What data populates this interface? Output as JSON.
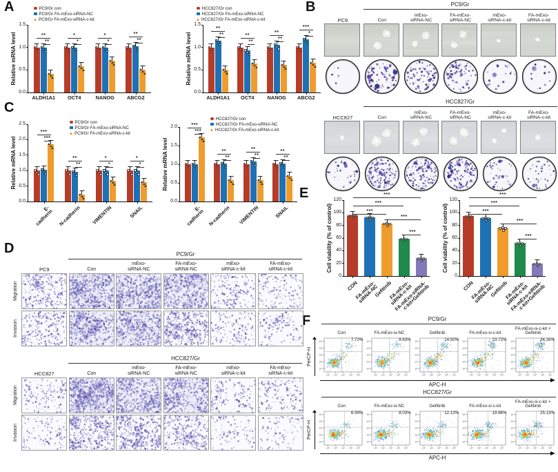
{
  "palette": {
    "con": "#b73c27",
    "nc": "#1e71b4",
    "ckit": "#ef9c2d",
    "green": "#208a4c",
    "purple": "#8279b9"
  },
  "panels": {
    "a": {
      "label": "A",
      "charts": [
        {
          "name": "pc9-stemness-mrna",
          "ylabel": "Relative mRNA level",
          "ymax": 1.5,
          "yticks": [
            "0.0",
            "0.5",
            "1.0",
            "1.5"
          ],
          "categories": [
            "ALDH1A1",
            "OCT4",
            "NANOG",
            "ABCG2"
          ],
          "legend": [
            "PC9/Gr con",
            "PC9/Gr FA-mExo-siRNA-NC",
            "PC9/Gr FA-mExo-siRNA-c-kit"
          ],
          "series": [
            {
              "name": "con",
              "color_key": "con",
              "values": [
                1.0,
                1.0,
                1.0,
                1.0
              ]
            },
            {
              "name": "siRNA-NC",
              "color_key": "nc",
              "values": [
                1.0,
                1.0,
                1.0,
                1.03
              ]
            },
            {
              "name": "siRNA-c-kit",
              "color_key": "ckit",
              "values": [
                0.42,
                0.58,
                0.7,
                0.5
              ]
            }
          ],
          "sig": [
            [
              "**",
              "**"
            ],
            [
              "*",
              "*"
            ],
            [
              "*",
              "*"
            ],
            [
              "**",
              "**"
            ]
          ]
        },
        {
          "name": "hcc827-stemness-mrna",
          "ylabel": "Relative mRNA level",
          "ymax": 1.5,
          "yticks": [
            "0.0",
            "0.5",
            "1.0",
            "1.5"
          ],
          "categories": [
            "ALDH1A1",
            "OCT4",
            "NANOG",
            "ABCG2"
          ],
          "legend": [
            "HCC827/Gr con",
            "HCC827/Gr FA-mExo-siRNA-NC",
            "HCC827/Gr FA-mExo-siRNA-c-kit"
          ],
          "series": [
            {
              "name": "con",
              "color_key": "con",
              "values": [
                1.0,
                1.0,
                1.0,
                1.0
              ]
            },
            {
              "name": "siRNA-NC",
              "color_key": "nc",
              "values": [
                1.15,
                0.93,
                1.05,
                1.18
              ]
            },
            {
              "name": "siRNA-c-kit",
              "color_key": "ckit",
              "values": [
                0.5,
                0.65,
                0.62,
                0.66
              ]
            }
          ],
          "sig": [
            [
              "**",
              "**"
            ],
            [
              "**",
              "**"
            ],
            [
              "**",
              "**"
            ],
            [
              "***",
              "*"
            ]
          ]
        }
      ]
    },
    "b": {
      "label": "B",
      "blocks": [
        {
          "parent": "PC9",
          "group": "PC9/Gr",
          "treatments": [
            "Con",
            "mExo-\nsiRNA-NC",
            "FA-mExo-\nsiRNA-NC",
            "mExo-\nsiRNA-c-kit",
            "FA-mExo-\nsiRNA-c-kit"
          ],
          "spheres": [
            {
              "n": 0,
              "r": 0
            },
            {
              "n": 2,
              "r": 8
            },
            {
              "n": 2,
              "r": 7
            },
            {
              "n": 2,
              "r": 7
            },
            {
              "n": 1,
              "r": 4
            },
            {
              "n": 1,
              "r": 4
            }
          ],
          "colony_dots": [
            4,
            80,
            70,
            62,
            18,
            12
          ],
          "tint": "green"
        },
        {
          "parent": "HCC827",
          "group": "HCC827/Gr",
          "treatments": [
            "Con",
            "mExo-\nsiRNA-NC",
            "FA-mExo-\nsiRNA-NC",
            "mExo-\nsiRNA-c-kit",
            "FA-mExo-\nsiRNA-c-kit"
          ],
          "spheres": [
            {
              "n": 1,
              "r": 4
            },
            {
              "n": 2,
              "r": 9
            },
            {
              "n": 2,
              "r": 8
            },
            {
              "n": 2,
              "r": 9
            },
            {
              "n": 2,
              "r": 5
            },
            {
              "n": 1,
              "r": 5
            }
          ],
          "colony_dots": [
            35,
            160,
            150,
            140,
            45,
            38
          ],
          "tint": "gray"
        }
      ]
    },
    "c": {
      "label": "C",
      "charts": [
        {
          "name": "pc9-emt-mrna",
          "ylabel": "Relative mRNA level",
          "ymax": 2.5,
          "xrot": true,
          "yticks": [
            "0.0",
            "0.5",
            "1.0",
            "1.5",
            "2.0",
            "2.5"
          ],
          "categories": [
            "E-cadherin",
            "N-cadherin",
            "VIMENTIN",
            "SNAIL"
          ],
          "legend": [
            "PC9/Gr con",
            "PC9/Gr FA-mExo-siRNA-NC",
            "PC9/Gr FA-mExo-siRNA-c-kit"
          ],
          "series": [
            {
              "name": "con",
              "color_key": "con",
              "values": [
                1.0,
                1.0,
                1.0,
                1.0
              ]
            },
            {
              "name": "siRNA-NC",
              "color_key": "nc",
              "values": [
                1.03,
                0.97,
                1.0,
                1.0
              ]
            },
            {
              "name": "siRNA-c-kit",
              "color_key": "ckit",
              "values": [
                1.85,
                0.22,
                0.68,
                0.63
              ]
            }
          ],
          "sig": [
            [
              "***",
              "***"
            ],
            [
              "**",
              "**"
            ],
            [
              "*",
              "*"
            ],
            [
              "*",
              "*"
            ]
          ]
        },
        {
          "name": "hcc827-emt-mrna",
          "ylabel": "Relative mRNA level",
          "ymax": 2.0,
          "xrot": true,
          "yticks": [
            "0.0",
            "0.5",
            "1.0",
            "1.5",
            "2.0"
          ],
          "categories": [
            "E-cadherin",
            "N-cadherin",
            "VIMENTIN",
            "SNAIL"
          ],
          "legend": [
            "HCC827/Gr con",
            "HCC827/Gr FA-mExo-siRNA-NC",
            "HCC827/Gr FA-mExo-siRNA-c-kit"
          ],
          "series": [
            {
              "name": "con",
              "color_key": "con",
              "values": [
                1.0,
                1.0,
                1.0,
                1.0
              ]
            },
            {
              "name": "siRNA-NC",
              "color_key": "nc",
              "values": [
                1.0,
                1.02,
                1.08,
                1.02
              ]
            },
            {
              "name": "siRNA-c-kit",
              "color_key": "ckit",
              "values": [
                1.72,
                0.58,
                0.57,
                0.68
              ]
            }
          ],
          "sig": [
            [
              "***",
              "***"
            ],
            [
              "**",
              "**"
            ],
            [
              "**",
              "**"
            ],
            [
              "**",
              "**"
            ]
          ]
        }
      ]
    },
    "d": {
      "label": "D",
      "rows": [
        "Migration",
        "Invasion"
      ],
      "blocks": [
        {
          "parent": "PC9",
          "group": "PC9/Gr",
          "treatments": [
            "Con",
            "mExo-\nsiRNA-NC",
            "FA-mExo-\nsiRNA-NC",
            "mExo-\nsiRNA-c-kit",
            "FA-mExo-\nsiRNA-c-kit"
          ],
          "density": [
            [
              320,
              680,
              640,
              600,
              220,
              190
            ],
            [
              260,
              560,
              540,
              500,
              160,
              140
            ]
          ]
        },
        {
          "parent": "HCC827",
          "group": "HCC827/Gr",
          "treatments": [
            "Con",
            "mExo-\nsiRNA-NC",
            "FA-mExo-\nsiRNA-NC",
            "mExo-\nsiRNA-c-kit",
            "FA-mExo-\nsiRNA-c-kit"
          ],
          "density": [
            [
              160,
              850,
              620,
              580,
              180,
              160
            ],
            [
              130,
              470,
              480,
              340,
              110,
              95
            ]
          ]
        }
      ]
    },
    "e": {
      "label": "E",
      "charts": [
        {
          "name": "pc9-viability",
          "ylabel": "Cell viability (% of control)",
          "ymax": 120,
          "yticks": [
            "0",
            "20",
            "40",
            "60",
            "80",
            "100",
            "120"
          ],
          "categories": [
            "CON",
            "FA-mExo-\nsiRNA-NC",
            "Gefitinib",
            "FA-mExo-\nsiRNA-c-kit",
            "FA-mExo-siRNA-\nc-kit+Gefitinib"
          ],
          "colors": [
            "con",
            "nc",
            "ckit",
            "green",
            "purple"
          ],
          "values": [
            96,
            93,
            83,
            59,
            28
          ],
          "pairs": [
            {
              "a": 0,
              "b": 4,
              "s": "***"
            },
            {
              "a": 0,
              "b": 3,
              "s": "***"
            },
            {
              "a": 0,
              "b": 2,
              "s": "***"
            },
            {
              "a": 2,
              "b": 4,
              "s": "***"
            },
            {
              "a": 3,
              "b": 4,
              "s": "***"
            }
          ]
        },
        {
          "name": "hcc827-viability",
          "ylabel": "Cell viability (% of control)",
          "ymax": 120,
          "yticks": [
            "0",
            "20",
            "40",
            "60",
            "80",
            "100",
            "120"
          ],
          "categories": [
            "CON",
            "FA-mExo-\nsiRNA-NC",
            "Gefitinib",
            "FA-mExo-\nsiRNA-c-kit",
            "FA-mExo-siRNA-\nc-kit+Gefitinib"
          ],
          "colors": [
            "con",
            "nc",
            "ckit",
            "green",
            "purple"
          ],
          "values": [
            95,
            92,
            76,
            52,
            20
          ],
          "pairs": [
            {
              "a": 0,
              "b": 4,
              "s": "***"
            },
            {
              "a": 0,
              "b": 3,
              "s": "***"
            },
            {
              "a": 0,
              "b": 2,
              "s": "***"
            },
            {
              "a": 2,
              "b": 4,
              "s": "***"
            },
            {
              "a": 3,
              "b": 4,
              "s": "***"
            }
          ]
        }
      ]
    },
    "f": {
      "label": "F",
      "xlabel": "APC-H",
      "ylabel": "PerCP-H",
      "ticks": [
        "10¹",
        "10²",
        "10³",
        "10⁴",
        "10⁵"
      ],
      "blocks": [
        {
          "group": "PC9/Gr",
          "tail": "diag",
          "plots": [
            {
              "label": "Con",
              "pct": "7.72%"
            },
            {
              "label": "FA-mExo-si-NC",
              "pct": "8.63%"
            },
            {
              "label": "Gefitinib",
              "pct": "14.50%"
            },
            {
              "label": "FA-mExo-si-c-kit",
              "pct": "23.72%"
            },
            {
              "label": "FA-mExo-si-c-kit +\nGefitinib",
              "pct": "34.16%"
            }
          ]
        },
        {
          "group": "HCC827/Gr",
          "tail": "horiz",
          "plots": [
            {
              "label": "Con",
              "pct": "6.99%"
            },
            {
              "label": "FA-mExo-si-NC",
              "pct": "8.03%"
            },
            {
              "label": "Gefitinib",
              "pct": "12.13%"
            },
            {
              "label": "FA-mExo-si-c-kit",
              "pct": "19.86%"
            },
            {
              "label": "FA-mExo-si-c-kit +\nGefitinib",
              "pct": "25.13%"
            }
          ]
        }
      ]
    }
  }
}
